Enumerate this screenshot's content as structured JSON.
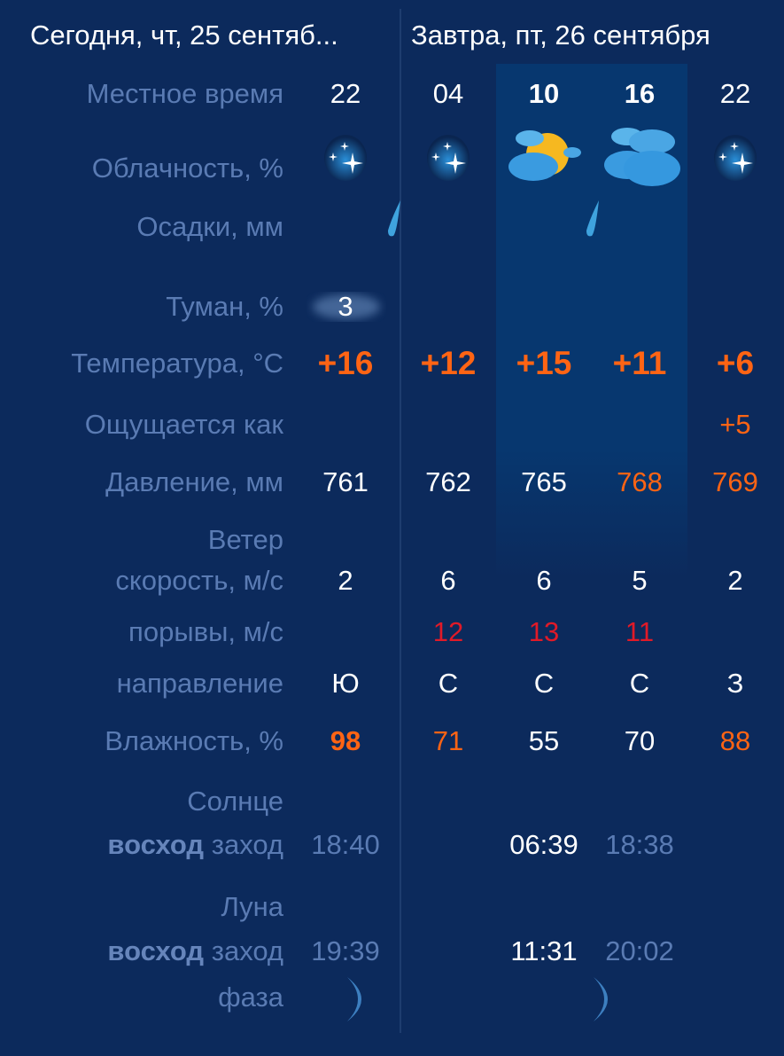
{
  "header": {
    "today": "Сегодня, чт, 25 сентяб...",
    "tomorrow": "Завтра, пт, 26 сентября"
  },
  "labels": {
    "local_time": "Местное время",
    "cloudiness": "Облачность, %",
    "precip": "Осадки, мм",
    "fog": "Туман, %",
    "temperature": "Температура, °C",
    "feels_like": "Ощущается как",
    "pressure": "Давление, мм",
    "wind": "Ветер",
    "wind_speed": "скорость, м/с",
    "gusts": "порывы, м/с",
    "direction": "направление",
    "humidity": "Влажность, %",
    "sun": "Солнце",
    "rise": "восход",
    "set": "заход",
    "moon": "Луна",
    "phase": "фаза"
  },
  "columns": [
    {
      "hour": "22",
      "cloud_icon": "night-clear-icon",
      "precip_icon": "raindrop-icon",
      "fog": "3",
      "temp": "+16",
      "feels": "",
      "pressure": "761",
      "wind_speed": "2",
      "gusts": "",
      "direction": "Ю",
      "humidity": "98"
    },
    {
      "hour": "04",
      "cloud_icon": "night-clear-icon",
      "precip_icon": "",
      "fog": "",
      "temp": "+12",
      "feels": "",
      "pressure": "762",
      "wind_speed": "6",
      "gusts": "12",
      "direction": "С",
      "humidity": "71"
    },
    {
      "hour": "10",
      "cloud_icon": "partly-cloudy-sun-icon",
      "precip_icon": "raindrop-icon",
      "fog": "",
      "temp": "+15",
      "feels": "",
      "pressure": "765",
      "wind_speed": "6",
      "gusts": "13",
      "direction": "С",
      "humidity": "55"
    },
    {
      "hour": "16",
      "cloud_icon": "cloudy-icon",
      "precip_icon": "",
      "fog": "",
      "temp": "+11",
      "feels": "",
      "pressure": "768",
      "wind_speed": "5",
      "gusts": "11",
      "direction": "С",
      "humidity": "70"
    },
    {
      "hour": "22",
      "cloud_icon": "night-clear-icon",
      "precip_icon": "",
      "fog": "",
      "temp": "+6",
      "feels": "+5",
      "pressure": "769",
      "wind_speed": "2",
      "gusts": "",
      "direction": "З",
      "humidity": "88"
    }
  ],
  "sun": {
    "today_set": "18:40",
    "tomorrow_rise": "06:39",
    "tomorrow_set": "18:38"
  },
  "moon": {
    "today_set": "19:39",
    "tomorrow_rise": "11:31",
    "tomorrow_set": "20:02",
    "phase_icon": "waxing-crescent-icon"
  },
  "colors": {
    "background": "#0c2a5c",
    "highlight": "#07376f",
    "label": "#5a7bb3",
    "warm": "#ff6414",
    "gust": "#e01a28"
  }
}
